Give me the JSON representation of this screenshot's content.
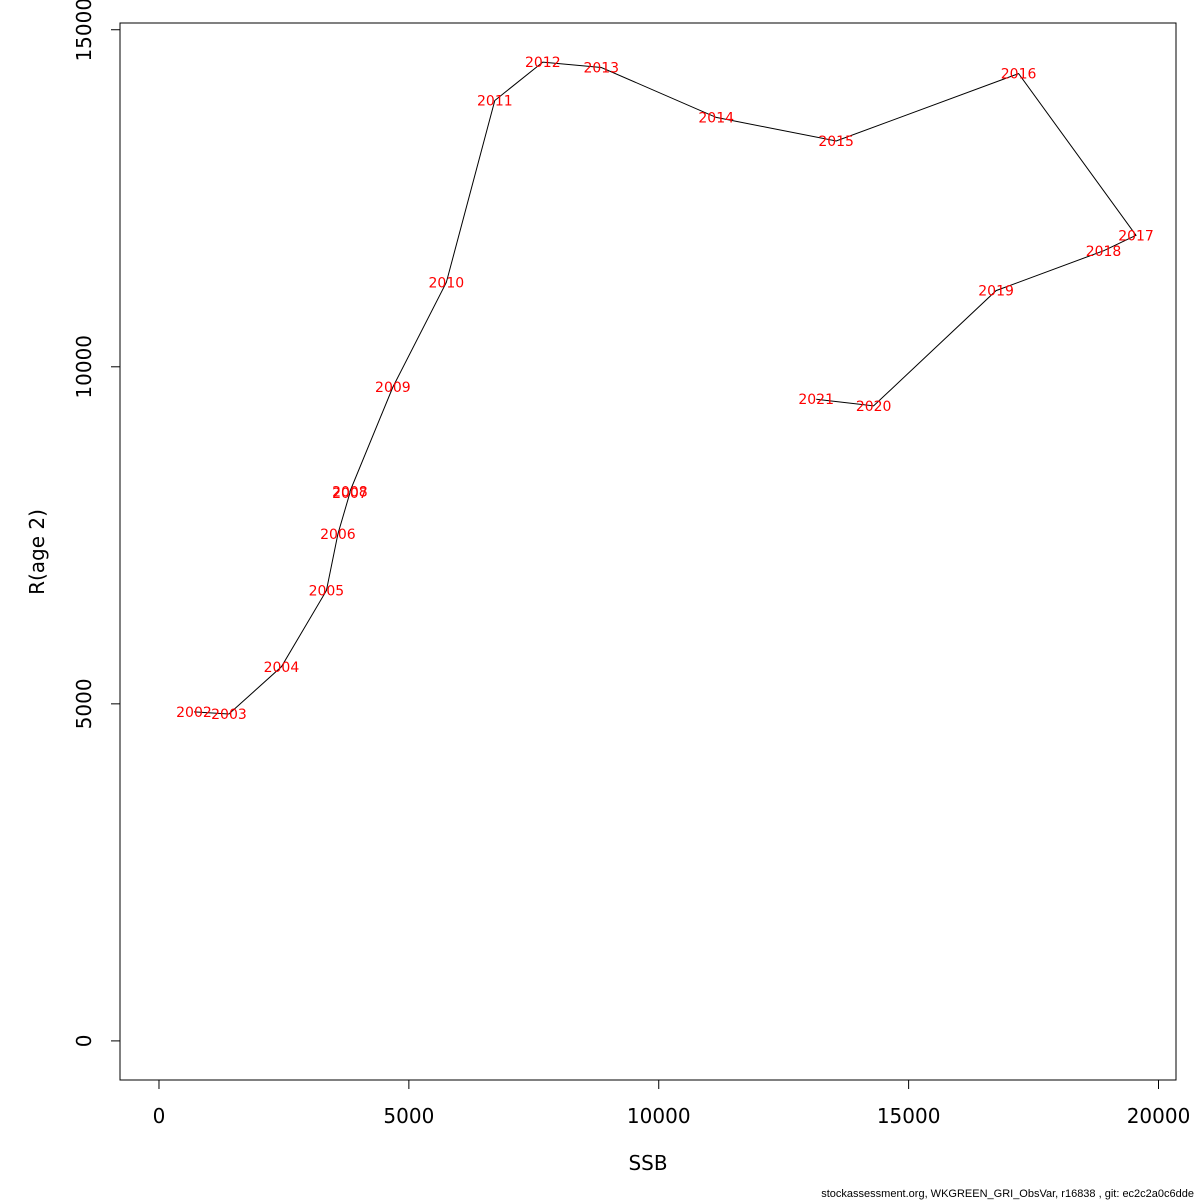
{
  "footer": "stockassessment.org, WKGREEN_GRI_ObsVar, r16838 , git: ec2c2a0c6dde",
  "chart_data": {
    "type": "line",
    "xlabel": "SSB",
    "ylabel": "R(age 2)",
    "xlim": [
      -780,
      20350
    ],
    "ylim": [
      -580,
      15100
    ],
    "x_ticks": [
      0,
      5000,
      10000,
      15000,
      20000
    ],
    "y_ticks": [
      0,
      5000,
      10000,
      15000
    ],
    "line_color": "#000000",
    "label_color": "#ff0000",
    "grid": false,
    "points": [
      {
        "year": "2002",
        "x": 700,
        "y": 4880
      },
      {
        "year": "2003",
        "x": 1400,
        "y": 4850
      },
      {
        "year": "2004",
        "x": 2450,
        "y": 5550
      },
      {
        "year": "2005",
        "x": 3350,
        "y": 6680
      },
      {
        "year": "2006",
        "x": 3580,
        "y": 7520
      },
      {
        "year": "2007",
        "x": 3820,
        "y": 8130
      },
      {
        "year": "2008",
        "x": 3820,
        "y": 8150
      },
      {
        "year": "2009",
        "x": 4680,
        "y": 9700
      },
      {
        "year": "2010",
        "x": 5750,
        "y": 11250
      },
      {
        "year": "2011",
        "x": 6720,
        "y": 13950
      },
      {
        "year": "2012",
        "x": 7680,
        "y": 14520
      },
      {
        "year": "2013",
        "x": 8850,
        "y": 14440
      },
      {
        "year": "2014",
        "x": 11150,
        "y": 13700
      },
      {
        "year": "2015",
        "x": 13550,
        "y": 13350
      },
      {
        "year": "2016",
        "x": 17200,
        "y": 14350
      },
      {
        "year": "2017",
        "x": 19550,
        "y": 11950
      },
      {
        "year": "2018",
        "x": 18900,
        "y": 11720
      },
      {
        "year": "2019",
        "x": 16750,
        "y": 11130
      },
      {
        "year": "2020",
        "x": 14300,
        "y": 9420
      },
      {
        "year": "2021",
        "x": 13150,
        "y": 9520
      }
    ]
  }
}
